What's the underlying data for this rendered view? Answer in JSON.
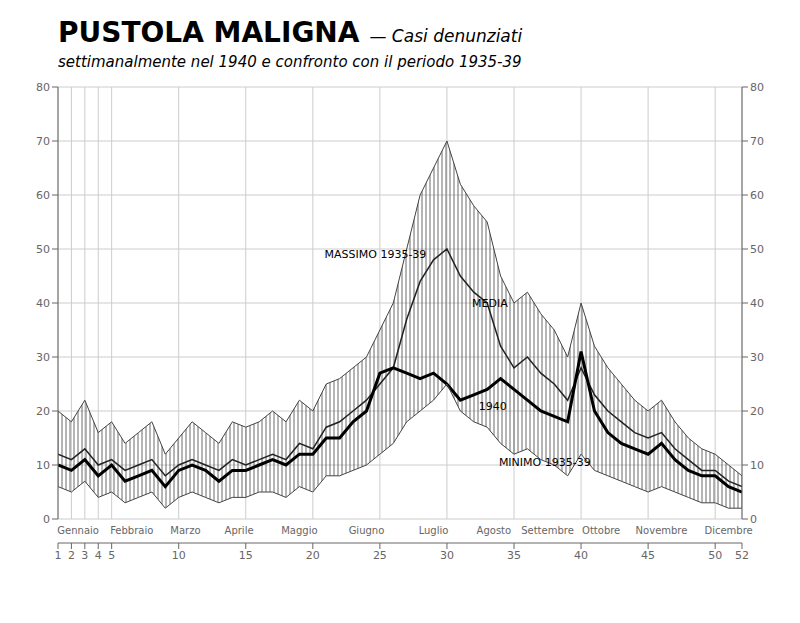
{
  "chart_data": {
    "type": "line",
    "title": "PUSTOLA MALIGNA",
    "subtitle": [
      "— Casi denunziati",
      "settimanalmente nel 1940 e confronto con il periodo 1935-39"
    ],
    "x": [
      1,
      2,
      3,
      4,
      5,
      6,
      7,
      8,
      9,
      10,
      11,
      12,
      13,
      14,
      15,
      16,
      17,
      18,
      19,
      20,
      21,
      22,
      23,
      24,
      25,
      26,
      27,
      28,
      29,
      30,
      31,
      32,
      33,
      34,
      35,
      36,
      37,
      38,
      39,
      40,
      41,
      42,
      43,
      44,
      45,
      46,
      47,
      48,
      49,
      50,
      51,
      52
    ],
    "series": [
      {
        "name": "MASSIMO 1935-39",
        "color": "#444444",
        "values": [
          20,
          18,
          22,
          16,
          18,
          14,
          16,
          18,
          12,
          15,
          18,
          16,
          14,
          18,
          17,
          18,
          20,
          18,
          22,
          20,
          25,
          26,
          28,
          30,
          35,
          40,
          50,
          60,
          65,
          70,
          62,
          58,
          55,
          45,
          40,
          42,
          38,
          35,
          30,
          40,
          32,
          28,
          25,
          22,
          20,
          22,
          18,
          15,
          13,
          12,
          10,
          8
        ]
      },
      {
        "name": "MEDIA",
        "color": "#222222",
        "values": [
          12,
          11,
          13,
          10,
          11,
          9,
          10,
          11,
          8,
          10,
          11,
          10,
          9,
          11,
          10,
          11,
          12,
          11,
          14,
          13,
          17,
          18,
          20,
          22,
          25,
          28,
          37,
          44,
          48,
          50,
          45,
          42,
          40,
          32,
          28,
          30,
          27,
          25,
          22,
          28,
          23,
          20,
          18,
          16,
          15,
          16,
          13,
          11,
          9,
          9,
          7,
          6
        ]
      },
      {
        "name": "1940",
        "color": "#000000",
        "values": [
          10,
          9,
          11,
          8,
          10,
          7,
          8,
          9,
          6,
          9,
          10,
          9,
          7,
          9,
          9,
          10,
          11,
          10,
          12,
          12,
          15,
          15,
          18,
          20,
          27,
          28,
          27,
          26,
          27,
          25,
          22,
          23,
          24,
          26,
          24,
          22,
          20,
          19,
          18,
          31,
          20,
          16,
          14,
          13,
          12,
          14,
          11,
          9,
          8,
          8,
          6,
          5
        ]
      },
      {
        "name": "MINIMO 1935-39",
        "color": "#444444",
        "values": [
          6,
          5,
          7,
          4,
          5,
          3,
          4,
          5,
          2,
          4,
          5,
          4,
          3,
          4,
          4,
          5,
          5,
          4,
          6,
          5,
          8,
          8,
          9,
          10,
          12,
          14,
          18,
          20,
          22,
          25,
          20,
          18,
          17,
          14,
          12,
          13,
          11,
          10,
          8,
          12,
          9,
          8,
          7,
          6,
          5,
          6,
          5,
          4,
          3,
          3,
          2,
          2
        ]
      }
    ],
    "xlim": [
      1,
      52
    ],
    "xticks": [
      1,
      2,
      3,
      4,
      5,
      10,
      15,
      20,
      25,
      30,
      35,
      40,
      45,
      50,
      52
    ],
    "x2ticks": [
      {
        "value": 2.5,
        "label": "Gennaio"
      },
      {
        "value": 6.5,
        "label": "Febbraio"
      },
      {
        "value": 10.5,
        "label": "Marzo"
      },
      {
        "value": 14.5,
        "label": "Aprile"
      },
      {
        "value": 19.0,
        "label": "Maggio"
      },
      {
        "value": 24.0,
        "label": "Giugno"
      },
      {
        "value": 29.0,
        "label": "Luglio"
      },
      {
        "value": 33.5,
        "label": "Agosto"
      },
      {
        "value": 37.5,
        "label": "Settembre"
      },
      {
        "value": 41.5,
        "label": "Ottobre"
      },
      {
        "value": 46.0,
        "label": "Novembre"
      },
      {
        "value": 51.0,
        "label": "Dicembre"
      }
    ],
    "ylim": [
      0,
      80
    ],
    "yticks": [
      0,
      10,
      20,
      30,
      40,
      50,
      60,
      70,
      80
    ],
    "y2lim": [
      0,
      80
    ],
    "y2ticks": [
      0,
      10,
      20,
      30,
      40,
      50,
      60,
      70,
      80
    ],
    "grid": true,
    "annotations": [
      {
        "text": "MASSIMO 1935-39",
        "x": 20.5,
        "y": 49
      },
      {
        "text": "MEDIA",
        "x": 31.5,
        "y": 40
      },
      {
        "text": "1940",
        "x": 32.0,
        "y": 21
      },
      {
        "text": "MINIMO 1935-39",
        "x": 33.5,
        "y": 10.5
      }
    ]
  }
}
